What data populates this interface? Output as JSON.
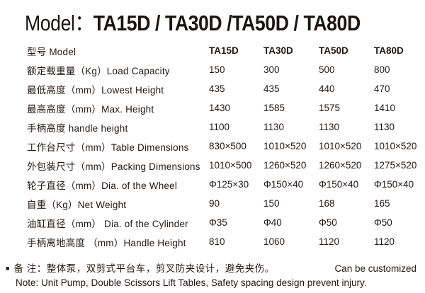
{
  "title": {
    "prefix": "Model：",
    "models": "TA15D / TA30D /TA50D / TA80D"
  },
  "table": {
    "header": {
      "label": "型号 Model",
      "columns": [
        "TA15D",
        "TA30D",
        "TA50D",
        "TA80D"
      ]
    },
    "rows": [
      {
        "label": "额定载重量（Kg）Load Capacity",
        "values": [
          "150",
          "300",
          "500",
          "800"
        ]
      },
      {
        "label": "最低高度（mm）Lowest Height",
        "values": [
          "435",
          "435",
          "440",
          "470"
        ]
      },
      {
        "label": "最高高度（mm）Max. Height",
        "values": [
          "1430",
          "1585",
          "1575",
          "1410"
        ]
      },
      {
        "label": "手柄高度 handle height",
        "values": [
          "1100",
          "1130",
          "1130",
          "1130"
        ]
      },
      {
        "label": "工作台尺寸（mm）Table Dimensions",
        "values": [
          "830×500",
          "1010×520",
          "1010×520",
          "1010×520"
        ]
      },
      {
        "label": "外包装尺寸（mm）Packing Dimensions",
        "values": [
          "1010×500",
          "1260×520",
          "1260×520",
          "1275×520"
        ]
      },
      {
        "label": "轮子直径（mm）Dia. of the Wheel",
        "values": [
          "Φ125×30",
          "Φ150×40",
          "Φ150×40",
          "Φ150×40"
        ]
      },
      {
        "label": "自重（Kg）Net Weight",
        "values": [
          "90",
          "150",
          "168",
          "165"
        ]
      },
      {
        "label": "油缸直径（mm） Dia. of the Cylinder",
        "values": [
          "Φ35",
          "Φ40",
          "Φ50",
          "Φ50"
        ]
      },
      {
        "label": "手柄离地高度 （mm）Handle Height",
        "values": [
          "810",
          "1060",
          "1120",
          "1120"
        ]
      }
    ]
  },
  "notes": {
    "bullet": "■",
    "line1_cn": "备 注：整体泵，双剪式平台车，剪叉防夹设计，避免夹伤。",
    "customized": "Can be customized",
    "line2_en": "Note: Unit Pump, Double Scissors Lift Tables, Safety spacing design  prevent injury."
  },
  "colors": {
    "text": "#231815",
    "title": "#1c1410",
    "background": "#ffffff"
  }
}
